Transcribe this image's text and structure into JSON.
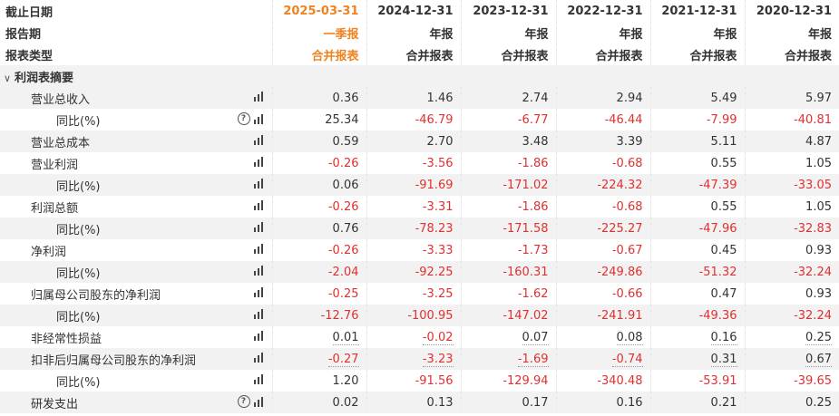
{
  "header": {
    "labels": [
      "截止日期",
      "报告期",
      "报表类型"
    ],
    "dates": [
      "2025-03-31",
      "2024-12-31",
      "2023-12-31",
      "2022-12-31",
      "2021-12-31",
      "2020-12-31"
    ],
    "periods": [
      "一季报",
      "年报",
      "年报",
      "年报",
      "年报",
      "年报"
    ],
    "types": [
      "合并报表",
      "合并报表",
      "合并报表",
      "合并报表",
      "合并报表",
      "合并报表"
    ]
  },
  "section": {
    "arrow": "∨",
    "title": "利润表摘要"
  },
  "icons": {
    "help": "question-circle-icon",
    "chart": "bar-chart-icon",
    "help_glyph": "?"
  },
  "colors": {
    "highlight": "#f0821f",
    "negative": "#e03030",
    "stripe": "#f2f2f2"
  },
  "rows": [
    {
      "label": "营业总收入",
      "sub": false,
      "help": false,
      "values": [
        "0.36",
        "1.46",
        "2.74",
        "2.94",
        "5.49",
        "5.97"
      ]
    },
    {
      "label": "同比(%)",
      "sub": true,
      "help": true,
      "values": [
        "25.34",
        "-46.79",
        "-6.77",
        "-46.44",
        "-7.99",
        "-40.81"
      ]
    },
    {
      "label": "营业总成本",
      "sub": false,
      "help": false,
      "values": [
        "0.59",
        "2.70",
        "3.48",
        "3.39",
        "5.11",
        "4.87"
      ]
    },
    {
      "label": "营业利润",
      "sub": false,
      "help": false,
      "values": [
        "-0.26",
        "-3.56",
        "-1.86",
        "-0.68",
        "0.55",
        "1.05"
      ]
    },
    {
      "label": "同比(%)",
      "sub": true,
      "help": false,
      "values": [
        "0.06",
        "-91.69",
        "-171.02",
        "-224.32",
        "-47.39",
        "-33.05"
      ]
    },
    {
      "label": "利润总额",
      "sub": false,
      "help": false,
      "values": [
        "-0.26",
        "-3.31",
        "-1.86",
        "-0.68",
        "0.55",
        "1.05"
      ]
    },
    {
      "label": "同比(%)",
      "sub": true,
      "help": false,
      "values": [
        "0.76",
        "-78.23",
        "-171.58",
        "-225.27",
        "-47.96",
        "-32.83"
      ]
    },
    {
      "label": "净利润",
      "sub": false,
      "help": false,
      "values": [
        "-0.26",
        "-3.33",
        "-1.73",
        "-0.67",
        "0.45",
        "0.93"
      ]
    },
    {
      "label": "同比(%)",
      "sub": true,
      "help": false,
      "values": [
        "-2.04",
        "-92.25",
        "-160.31",
        "-249.86",
        "-51.32",
        "-32.24"
      ]
    },
    {
      "label": "归属母公司股东的净利润",
      "sub": false,
      "help": false,
      "values": [
        "-0.25",
        "-3.25",
        "-1.62",
        "-0.66",
        "0.47",
        "0.93"
      ]
    },
    {
      "label": "同比(%)",
      "sub": true,
      "help": false,
      "values": [
        "-12.76",
        "-100.95",
        "-147.02",
        "-241.91",
        "-49.36",
        "-32.24"
      ]
    },
    {
      "label": "非经常性损益",
      "sub": false,
      "help": false,
      "values": [
        "0.01",
        "-0.02",
        "0.07",
        "0.08",
        "0.16",
        "0.25"
      ]
    },
    {
      "label": "扣非后归属母公司股东的净利润",
      "sub": false,
      "help": false,
      "values": [
        "-0.27",
        "-3.23",
        "-1.69",
        "-0.74",
        "0.31",
        "0.67"
      ]
    },
    {
      "label": "同比(%)",
      "sub": true,
      "help": false,
      "values": [
        "1.20",
        "-91.56",
        "-129.94",
        "-340.48",
        "-53.91",
        "-39.65"
      ]
    },
    {
      "label": "研发支出",
      "sub": false,
      "help": true,
      "values": [
        "0.02",
        "0.13",
        "0.17",
        "0.16",
        "0.21",
        "0.25"
      ]
    }
  ]
}
